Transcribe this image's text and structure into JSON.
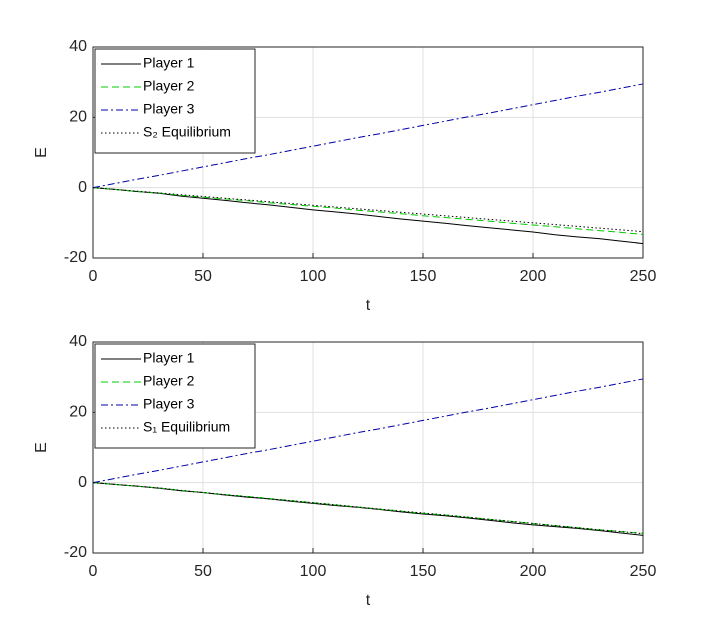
{
  "chart_data": [
    {
      "type": "line",
      "xlabel": "t",
      "ylabel": "E",
      "x": [
        0,
        10,
        20,
        30,
        40,
        50,
        60,
        70,
        80,
        90,
        100,
        110,
        120,
        130,
        140,
        150,
        160,
        170,
        180,
        190,
        200,
        210,
        220,
        230,
        240,
        250
      ],
      "xlim": [
        0,
        250
      ],
      "xticks": [
        0,
        50,
        100,
        150,
        200,
        250
      ],
      "ylim": [
        -20,
        40
      ],
      "yticks": [
        -20,
        0,
        20,
        40
      ],
      "grid": true,
      "legend": "upper left",
      "series": [
        {
          "name": "Player 1",
          "color": "#000000",
          "linestyle": "-",
          "values": [
            0,
            -0.5,
            -1.1,
            -1.6,
            -2.4,
            -3,
            -3.6,
            -4.3,
            -4.9,
            -5.6,
            -6.3,
            -6.9,
            -7.5,
            -8.2,
            -8.9,
            -9.5,
            -10.1,
            -10.8,
            -11.4,
            -12,
            -12.6,
            -13.4,
            -14,
            -14.5,
            -15.2,
            -15.9
          ]
        },
        {
          "name": "Player 2",
          "color": "#00cc00",
          "linestyle": "--",
          "values": [
            0,
            -0.5,
            -1.1,
            -1.5,
            -2.2,
            -2.7,
            -3.2,
            -3.7,
            -4.3,
            -4.8,
            -5.3,
            -5.8,
            -6.4,
            -6.9,
            -7.4,
            -8,
            -8.5,
            -9,
            -9.5,
            -10.1,
            -10.6,
            -11.1,
            -11.7,
            -12.2,
            -12.7,
            -13.3
          ]
        },
        {
          "name": "Player 3",
          "color": "#0000aa",
          "linestyle": "-.",
          "values": [
            0,
            1.2,
            2.4,
            3.5,
            4.7,
            5.9,
            7.1,
            8.3,
            9.4,
            10.6,
            11.8,
            13,
            14.2,
            15.3,
            16.5,
            17.7,
            18.9,
            20.1,
            21.2,
            22.4,
            23.6,
            24.8,
            26,
            27.1,
            28.3,
            29.5
          ]
        },
        {
          "name": "S₂ Equilibrium",
          "color": "#000000",
          "linestyle": ":",
          "values": [
            0,
            -0.5,
            -1,
            -1.5,
            -2,
            -2.5,
            -3,
            -3.5,
            -4,
            -4.5,
            -5,
            -5.5,
            -6,
            -6.5,
            -7,
            -7.5,
            -8,
            -8.5,
            -9,
            -9.5,
            -10,
            -10.5,
            -11,
            -11.5,
            -12,
            -12.5
          ]
        }
      ]
    },
    {
      "type": "line",
      "xlabel": "t",
      "ylabel": "E",
      "x": [
        0,
        10,
        20,
        30,
        40,
        50,
        60,
        70,
        80,
        90,
        100,
        110,
        120,
        130,
        140,
        150,
        160,
        170,
        180,
        190,
        200,
        210,
        220,
        230,
        240,
        250
      ],
      "xlim": [
        0,
        250
      ],
      "xticks": [
        0,
        50,
        100,
        150,
        200,
        250
      ],
      "ylim": [
        -20,
        40
      ],
      "yticks": [
        -20,
        0,
        20,
        40
      ],
      "grid": true,
      "legend": "upper left",
      "series": [
        {
          "name": "Player 1",
          "color": "#000000",
          "linestyle": "-",
          "values": [
            0,
            -0.5,
            -1,
            -1.6,
            -2.3,
            -2.8,
            -3.5,
            -4.1,
            -4.6,
            -5.3,
            -5.9,
            -6.5,
            -7,
            -7.6,
            -8.3,
            -8.9,
            -9.4,
            -10,
            -10.7,
            -11.4,
            -12,
            -12.5,
            -13,
            -13.6,
            -14.3,
            -15
          ]
        },
        {
          "name": "Player 2",
          "color": "#00cc00",
          "linestyle": "--",
          "values": [
            0,
            -0.5,
            -1,
            -1.5,
            -2.2,
            -2.8,
            -3.4,
            -3.9,
            -4.5,
            -5.1,
            -5.7,
            -6.3,
            -6.9,
            -7.5,
            -8.1,
            -8.7,
            -9.2,
            -9.8,
            -10.4,
            -11,
            -11.6,
            -12.2,
            -12.8,
            -13.4,
            -13.9,
            -14.4
          ]
        },
        {
          "name": "Player 3",
          "color": "#0000aa",
          "linestyle": "-.",
          "values": [
            0,
            1.2,
            2.4,
            3.5,
            4.7,
            5.9,
            7.1,
            8.3,
            9.4,
            10.6,
            11.8,
            13,
            14.2,
            15.3,
            16.5,
            17.7,
            18.9,
            20.1,
            21.2,
            22.4,
            23.6,
            24.8,
            26,
            27.1,
            28.3,
            29.5
          ]
        },
        {
          "name": "S₁ Equilibrium",
          "color": "#000000",
          "linestyle": ":",
          "values": [
            0,
            -0.5,
            -1,
            -1.5,
            -2.2,
            -2.8,
            -3.4,
            -4,
            -4.6,
            -5.1,
            -5.7,
            -6.3,
            -6.9,
            -7.5,
            -8.1,
            -8.6,
            -9.2,
            -9.8,
            -10.4,
            -11,
            -11.6,
            -12.2,
            -12.8,
            -13.4,
            -13.9,
            -14.5
          ]
        }
      ]
    }
  ]
}
